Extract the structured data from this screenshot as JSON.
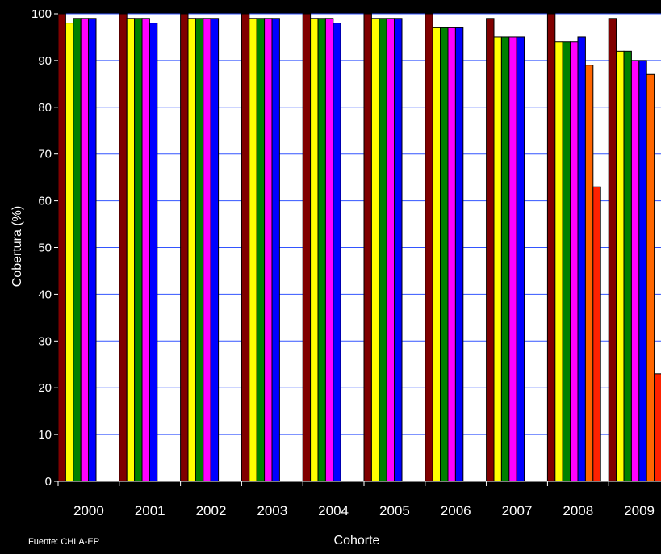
{
  "chart_data": {
    "type": "bar",
    "ylabel": "Cobertura (%)",
    "xlabel": "Cohorte",
    "source": "Fuente: CHLA-EP",
    "ylim": [
      0,
      100
    ],
    "y_ticks": [
      0,
      10,
      20,
      30,
      40,
      50,
      60,
      70,
      80,
      90,
      100
    ],
    "grid": true,
    "legend": "none",
    "categories": [
      "2000",
      "2001",
      "2002",
      "2003",
      "2004",
      "2005",
      "2006",
      "2007",
      "2008",
      "2009"
    ],
    "series": [
      {
        "color": "#800000",
        "values": [
          100,
          100,
          100,
          100,
          100,
          100,
          100,
          99,
          100,
          99
        ]
      },
      {
        "color": "#ffff00",
        "values": [
          98,
          99,
          99,
          99,
          99,
          99,
          97,
          95,
          94,
          92
        ]
      },
      {
        "color": "#008000",
        "values": [
          99,
          99,
          99,
          99,
          99,
          99,
          97,
          95,
          94,
          92
        ]
      },
      {
        "color": "#ff00ff",
        "values": [
          99,
          99,
          99,
          99,
          99,
          99,
          97,
          95,
          94,
          90
        ]
      },
      {
        "color": "#0000ff",
        "values": [
          99,
          98,
          99,
          99,
          98,
          99,
          97,
          95,
          95,
          90
        ]
      },
      {
        "color": "#ff6600",
        "values": [
          null,
          null,
          null,
          null,
          null,
          null,
          null,
          null,
          89,
          87
        ]
      },
      {
        "color": "#ff2200",
        "values": [
          null,
          null,
          null,
          null,
          null,
          null,
          null,
          null,
          63,
          23
        ]
      }
    ]
  },
  "colors": {
    "background": "#000000",
    "plot_area": "#ffffff",
    "gridline": "#3355ff",
    "text": "#ffffff"
  }
}
